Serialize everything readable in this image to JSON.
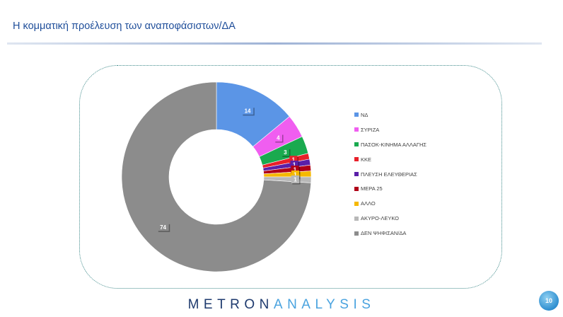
{
  "title": "Η κομματική προέλευση των αναποφάσιστων/ΔΑ",
  "brand": {
    "dark": "METRON",
    "light": "ANALYSIS"
  },
  "page_number": "10",
  "chart_data": {
    "type": "pie",
    "donut": true,
    "legend_position": "right",
    "slices": [
      {
        "label": "ΝΔ",
        "value": 14,
        "color": "#5b95e6"
      },
      {
        "label": "ΣΥΡΙΖΑ",
        "value": 4,
        "color": "#f05ef0"
      },
      {
        "label": "ΠΑΣΟΚ-ΚΙΝΗΜΑ ΑΛΛΑΓΗΣ",
        "value": 3,
        "color": "#1aaa4f"
      },
      {
        "label": "ΚΚΕ",
        "value": 1,
        "color": "#e8202a"
      },
      {
        "label": "ΠΛΕΥΣΗ ΕΛΕΥΘΕΡΙΑΣ",
        "value": 1,
        "color": "#5a1fa8"
      },
      {
        "label": "ΜΕΡΑ 25",
        "value": 1,
        "color": "#b00018"
      },
      {
        "label": "ΑΛΛΟ",
        "value": 1,
        "color": "#f5b800"
      },
      {
        "label": "ΑΚΥΡΟ-ΛΕΥΚΟ",
        "value": 1,
        "color": "#b8b8b8"
      },
      {
        "label": "ΔΕΝ ΨΗΦΙΣΑΝ/ΔΑ",
        "value": 74,
        "color": "#8c8c8c"
      }
    ]
  }
}
